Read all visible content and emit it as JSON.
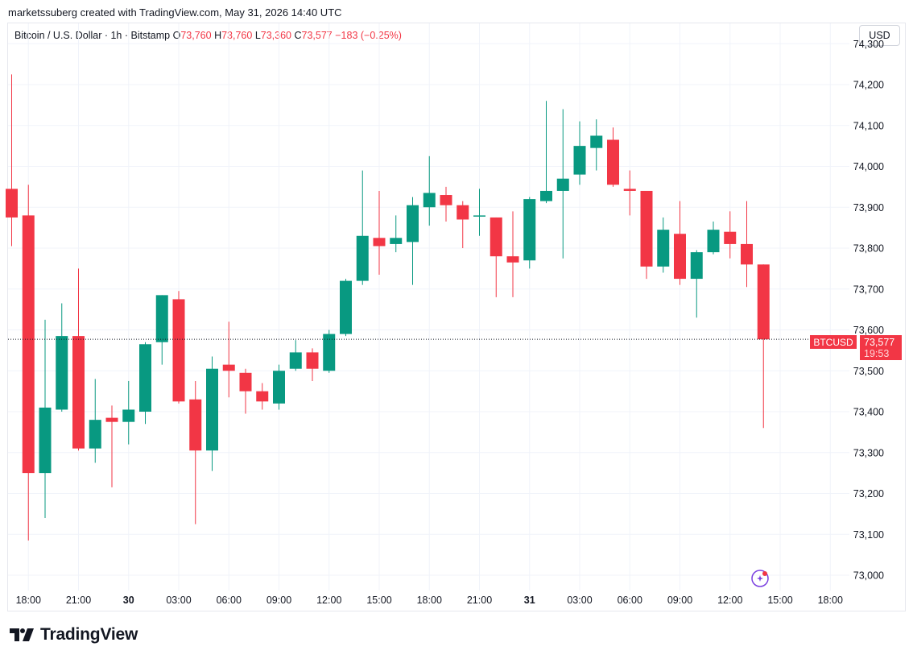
{
  "header": {
    "credit": "marketssuberg created with TradingView.com, May 31, 2026 14:40 UTC"
  },
  "legend": {
    "symbol": "Bitcoin / U.S. Dollar · 1h · Bitstamp",
    "o_label": "O",
    "o_value": "73,760",
    "h_label": "H",
    "h_value": "73,760",
    "l_label": "L",
    "l_value": "73,360",
    "c_label": "C",
    "c_value": "73,577",
    "change": "−183 (−0.25%)"
  },
  "currency_button": "USD",
  "price_tag": {
    "symbol": "BTCUSD",
    "price": "73,577",
    "countdown": "19:53"
  },
  "footer": {
    "brand": "TradingView"
  },
  "colors": {
    "up": "#089981",
    "down": "#f23645",
    "grid": "#f0f3fa",
    "text": "#131722"
  },
  "icons": {
    "logo": "tradingview-logo-icon",
    "assistant": "sparkle-icon"
  },
  "chart_data": {
    "type": "candlestick",
    "title": "Bitcoin / U.S. Dollar · 1h · Bitstamp",
    "y_ticks": [
      73000,
      73100,
      73200,
      73300,
      73400,
      73500,
      73600,
      73700,
      73800,
      73900,
      74000,
      74100,
      74200,
      74300
    ],
    "y_tick_labels": [
      "73,000",
      "73,100",
      "73,200",
      "73,300",
      "73,400",
      "73,500",
      "73,600",
      "73,700",
      "73,800",
      "73,900",
      "74,000",
      "74,100",
      "74,200",
      "74,300"
    ],
    "ylim": [
      72990,
      74310
    ],
    "x_ticks": [
      {
        "hour": 1,
        "label": "18:00"
      },
      {
        "hour": 4,
        "label": "21:00"
      },
      {
        "hour": 7,
        "label": "30"
      },
      {
        "hour": 10,
        "label": "03:00"
      },
      {
        "hour": 13,
        "label": "06:00"
      },
      {
        "hour": 16,
        "label": "09:00"
      },
      {
        "hour": 19,
        "label": "12:00"
      },
      {
        "hour": 22,
        "label": "15:00"
      },
      {
        "hour": 25,
        "label": "18:00"
      },
      {
        "hour": 28,
        "label": "21:00"
      },
      {
        "hour": 31,
        "label": "31"
      },
      {
        "hour": 34,
        "label": "03:00"
      },
      {
        "hour": 37,
        "label": "06:00"
      },
      {
        "hour": 40,
        "label": "09:00"
      },
      {
        "hour": 43,
        "label": "12:00"
      },
      {
        "hour": 46,
        "label": "15:00"
      },
      {
        "hour": 49,
        "label": "18:00"
      }
    ],
    "bold_x_labels": [
      "30",
      "31"
    ],
    "last_price": 73577,
    "candles": [
      {
        "o": 73945,
        "h": 74225,
        "l": 73805,
        "c": 73875
      },
      {
        "o": 73880,
        "h": 73955,
        "l": 73085,
        "c": 73250
      },
      {
        "o": 73250,
        "h": 73625,
        "l": 73140,
        "c": 73410
      },
      {
        "o": 73405,
        "h": 73665,
        "l": 73400,
        "c": 73585
      },
      {
        "o": 73585,
        "h": 73750,
        "l": 73305,
        "c": 73310
      },
      {
        "o": 73310,
        "h": 73480,
        "l": 73275,
        "c": 73380
      },
      {
        "o": 73385,
        "h": 73415,
        "l": 73215,
        "c": 73375
      },
      {
        "o": 73375,
        "h": 73475,
        "l": 73320,
        "c": 73405
      },
      {
        "o": 73400,
        "h": 73570,
        "l": 73370,
        "c": 73565
      },
      {
        "o": 73570,
        "h": 73685,
        "l": 73515,
        "c": 73685
      },
      {
        "o": 73675,
        "h": 73695,
        "l": 73420,
        "c": 73425
      },
      {
        "o": 73430,
        "h": 73475,
        "l": 73125,
        "c": 73305
      },
      {
        "o": 73305,
        "h": 73535,
        "l": 73255,
        "c": 73505
      },
      {
        "o": 73515,
        "h": 73620,
        "l": 73435,
        "c": 73500
      },
      {
        "o": 73495,
        "h": 73505,
        "l": 73395,
        "c": 73450
      },
      {
        "o": 73450,
        "h": 73470,
        "l": 73405,
        "c": 73425
      },
      {
        "o": 73420,
        "h": 73515,
        "l": 73405,
        "c": 73500
      },
      {
        "o": 73505,
        "h": 73575,
        "l": 73500,
        "c": 73545
      },
      {
        "o": 73545,
        "h": 73555,
        "l": 73475,
        "c": 73505
      },
      {
        "o": 73500,
        "h": 73600,
        "l": 73495,
        "c": 73590
      },
      {
        "o": 73590,
        "h": 73725,
        "l": 73585,
        "c": 73720
      },
      {
        "o": 73720,
        "h": 73990,
        "l": 73710,
        "c": 73830
      },
      {
        "o": 73825,
        "h": 73940,
        "l": 73735,
        "c": 73805
      },
      {
        "o": 73810,
        "h": 73880,
        "l": 73790,
        "c": 73825
      },
      {
        "o": 73815,
        "h": 73925,
        "l": 73710,
        "c": 73905
      },
      {
        "o": 73900,
        "h": 74025,
        "l": 73855,
        "c": 73935
      },
      {
        "o": 73930,
        "h": 73950,
        "l": 73865,
        "c": 73905
      },
      {
        "o": 73905,
        "h": 73915,
        "l": 73800,
        "c": 73870
      },
      {
        "o": 73880,
        "h": 73945,
        "l": 73830,
        "c": 73880
      },
      {
        "o": 73875,
        "h": 73875,
        "l": 73680,
        "c": 73780
      },
      {
        "o": 73780,
        "h": 73890,
        "l": 73680,
        "c": 73765
      },
      {
        "o": 73770,
        "h": 73925,
        "l": 73750,
        "c": 73920
      },
      {
        "o": 73915,
        "h": 74160,
        "l": 73910,
        "c": 73940
      },
      {
        "o": 73940,
        "h": 74140,
        "l": 73775,
        "c": 73970
      },
      {
        "o": 73980,
        "h": 74110,
        "l": 73955,
        "c": 74050
      },
      {
        "o": 74045,
        "h": 74115,
        "l": 73990,
        "c": 74075
      },
      {
        "o": 74065,
        "h": 74095,
        "l": 73950,
        "c": 73955
      },
      {
        "o": 73945,
        "h": 73990,
        "l": 73880,
        "c": 73940
      },
      {
        "o": 73940,
        "h": 73940,
        "l": 73725,
        "c": 73755
      },
      {
        "o": 73755,
        "h": 73875,
        "l": 73740,
        "c": 73845
      },
      {
        "o": 73835,
        "h": 73915,
        "l": 73710,
        "c": 73725
      },
      {
        "o": 73725,
        "h": 73795,
        "l": 73630,
        "c": 73790
      },
      {
        "o": 73790,
        "h": 73865,
        "l": 73785,
        "c": 73845
      },
      {
        "o": 73840,
        "h": 73890,
        "l": 73775,
        "c": 73810
      },
      {
        "o": 73810,
        "h": 73915,
        "l": 73705,
        "c": 73760
      },
      {
        "o": 73760,
        "h": 73760,
        "l": 73360,
        "c": 73577
      }
    ]
  }
}
